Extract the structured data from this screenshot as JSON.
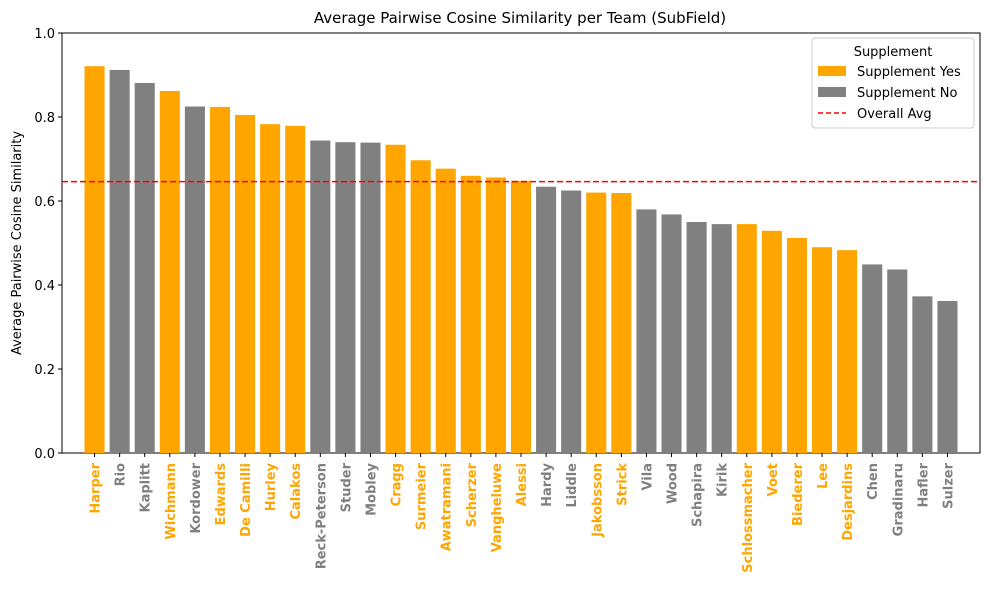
{
  "chart_data": {
    "type": "bar",
    "title": "Average Pairwise Cosine Similarity per Team (SubField)",
    "xlabel": "",
    "ylabel": "Average Pairwise Cosine Similarity",
    "ylim": [
      0,
      1.0
    ],
    "yticks": [
      "0.0",
      "0.2",
      "0.4",
      "0.6",
      "0.8",
      "1.0"
    ],
    "reference_line": {
      "name": "Overall Avg",
      "value": 0.646,
      "color": "#ff0000",
      "style": "dashed"
    },
    "legend": {
      "title": "Supplement",
      "placement": "top-right",
      "entries": [
        {
          "label": "Supplement Yes",
          "color": "#ffa500",
          "kind": "patch"
        },
        {
          "label": "Supplement No",
          "color": "#808080",
          "kind": "patch"
        },
        {
          "label": "Overall Avg",
          "color": "#ff0000",
          "kind": "dashed-line"
        }
      ]
    },
    "colors": {
      "yes": "#ffa500",
      "no": "#808080"
    },
    "categories": [
      "Harper",
      "Rio",
      "Kaplitt",
      "Wichmann",
      "Kordower",
      "Edwards",
      "De Camilli",
      "Hurley",
      "Calakos",
      "Reck-Peterson",
      "Studer",
      "Mobley",
      "Cragg",
      "Surmeier",
      "Awatramani",
      "Scherzer",
      "Vangheluwe",
      "Alessi",
      "Hardy",
      "Liddle",
      "Jakobsson",
      "Strick",
      "Vila",
      "Wood",
      "Schapira",
      "Kirik",
      "Schlossmacher",
      "Voet",
      "Biederer",
      "Lee",
      "Desjardins",
      "Chen",
      "Gradinaru",
      "Hafler",
      "Sulzer"
    ],
    "values": [
      0.921,
      0.912,
      0.881,
      0.862,
      0.825,
      0.824,
      0.805,
      0.783,
      0.779,
      0.744,
      0.74,
      0.739,
      0.734,
      0.697,
      0.677,
      0.66,
      0.656,
      0.648,
      0.634,
      0.625,
      0.62,
      0.619,
      0.58,
      0.568,
      0.55,
      0.545,
      0.545,
      0.529,
      0.512,
      0.49,
      0.483,
      0.449,
      0.437,
      0.373,
      0.362
    ],
    "supplement": [
      "yes",
      "no",
      "no",
      "yes",
      "no",
      "yes",
      "yes",
      "yes",
      "yes",
      "no",
      "no",
      "no",
      "yes",
      "yes",
      "yes",
      "yes",
      "yes",
      "yes",
      "no",
      "no",
      "yes",
      "yes",
      "no",
      "no",
      "no",
      "no",
      "yes",
      "yes",
      "yes",
      "yes",
      "yes",
      "no",
      "no",
      "no",
      "no"
    ]
  }
}
